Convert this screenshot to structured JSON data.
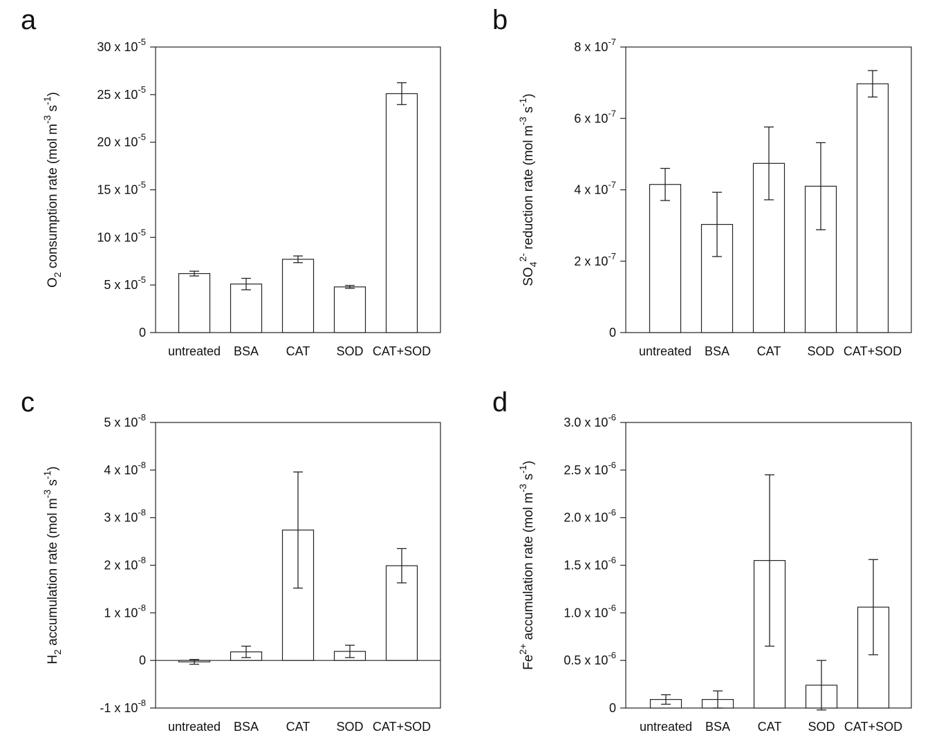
{
  "chart_data": [
    {
      "panel": "a",
      "type": "bar",
      "categories": [
        "untreated",
        "BSA",
        "CAT",
        "SOD",
        "CAT+SOD"
      ],
      "values": [
        6.2,
        5.1,
        7.7,
        4.8,
        25.1
      ],
      "errors": [
        0.25,
        0.6,
        0.35,
        0.15,
        1.15
      ],
      "unit_scale": "x 10^-5",
      "ylim": [
        0,
        30
      ],
      "yticks": [
        {
          "value": 0,
          "label": "0"
        },
        {
          "value": 5,
          "base": "5 x 10",
          "exp": "-5"
        },
        {
          "value": 10,
          "base": "10 x 10",
          "exp": "-5"
        },
        {
          "value": 15,
          "base": "15 x 10",
          "exp": "-5"
        },
        {
          "value": 20,
          "base": "20 x 10",
          "exp": "-5"
        },
        {
          "value": 25,
          "base": "25 x 10",
          "exp": "-5"
        },
        {
          "value": 30,
          "base": "30 x 10",
          "exp": "-5"
        }
      ],
      "ylabel_parts": [
        {
          "t": "O"
        },
        {
          "t": "2",
          "sub": true
        },
        {
          "t": " consumption rate (mol m"
        },
        {
          "t": "-3",
          "sup": true
        },
        {
          "t": " s"
        },
        {
          "t": "-1",
          "sup": true
        },
        {
          "t": ")"
        }
      ]
    },
    {
      "panel": "b",
      "type": "bar",
      "categories": [
        "untreated",
        "BSA",
        "CAT",
        "SOD",
        "CAT+SOD"
      ],
      "values": [
        4.15,
        3.03,
        4.74,
        4.1,
        6.97
      ],
      "errors": [
        0.45,
        0.9,
        1.02,
        1.22,
        0.37
      ],
      "unit_scale": "x 10^-7",
      "ylim": [
        0,
        8
      ],
      "yticks": [
        {
          "value": 0,
          "label": "0"
        },
        {
          "value": 2,
          "base": "2 x 10",
          "exp": "-7"
        },
        {
          "value": 4,
          "base": "4 x 10",
          "exp": "-7"
        },
        {
          "value": 6,
          "base": "6 x 10",
          "exp": "-7"
        },
        {
          "value": 8,
          "base": "8 x 10",
          "exp": "-7"
        }
      ],
      "ylabel_parts": [
        {
          "t": "SO"
        },
        {
          "t": "4",
          "sub": true
        },
        {
          "t": "2-",
          "sup": true
        },
        {
          "t": " reduction rate (mol m"
        },
        {
          "t": "-3",
          "sup": true
        },
        {
          "t": " s"
        },
        {
          "t": "-1",
          "sup": true
        },
        {
          "t": ")"
        }
      ]
    },
    {
      "panel": "c",
      "type": "bar",
      "categories": [
        "untreated",
        "BSA",
        "CAT",
        "SOD",
        "CAT+SOD"
      ],
      "values": [
        -0.03,
        0.18,
        2.74,
        0.19,
        1.99
      ],
      "errors": [
        0.05,
        0.12,
        1.22,
        0.13,
        0.36
      ],
      "unit_scale": "x 10^-8",
      "ylim": [
        -1,
        5
      ],
      "zero_line": true,
      "yticks": [
        {
          "value": -1,
          "base": "-1 x 10",
          "exp": "-8"
        },
        {
          "value": 0,
          "label": "0"
        },
        {
          "value": 1,
          "base": "1 x 10",
          "exp": "-8"
        },
        {
          "value": 2,
          "base": "2 x 10",
          "exp": "-8"
        },
        {
          "value": 3,
          "base": "3 x 10",
          "exp": "-8"
        },
        {
          "value": 4,
          "base": "4 x 10",
          "exp": "-8"
        },
        {
          "value": 5,
          "base": "5 x 10",
          "exp": "-8"
        }
      ],
      "ylabel_parts": [
        {
          "t": "H"
        },
        {
          "t": "2",
          "sub": true
        },
        {
          "t": " accumulation rate (mol m"
        },
        {
          "t": "-3",
          "sup": true
        },
        {
          "t": " s"
        },
        {
          "t": "-1",
          "sup": true
        },
        {
          "t": ")"
        }
      ]
    },
    {
      "panel": "d",
      "type": "bar",
      "categories": [
        "untreated",
        "BSA",
        "CAT",
        "SOD",
        "CAT+SOD"
      ],
      "values": [
        0.09,
        0.09,
        1.55,
        0.24,
        1.06
      ],
      "errors": [
        0.05,
        0.09,
        0.9,
        0.26,
        0.5
      ],
      "unit_scale": "x 10^-6",
      "ylim": [
        0,
        3
      ],
      "yticks": [
        {
          "value": 0,
          "label": "0"
        },
        {
          "value": 0.5,
          "base": "0.5 x 10",
          "exp": "-6"
        },
        {
          "value": 1.0,
          "base": "1.0 x 10",
          "exp": "-6"
        },
        {
          "value": 1.5,
          "base": "1.5 x 10",
          "exp": "-6"
        },
        {
          "value": 2.0,
          "base": "2.0 x 10",
          "exp": "-6"
        },
        {
          "value": 2.5,
          "base": "2.5 x 10",
          "exp": "-6"
        },
        {
          "value": 3.0,
          "base": "3.0 x 10",
          "exp": "-6"
        }
      ],
      "ylabel_parts": [
        {
          "t": "Fe"
        },
        {
          "t": "2+",
          "sup": true
        },
        {
          "t": " accumulation rate (mol m"
        },
        {
          "t": "-3",
          "sup": true
        },
        {
          "t": " s"
        },
        {
          "t": "-1",
          "sup": true
        },
        {
          "t": ")"
        }
      ]
    }
  ]
}
